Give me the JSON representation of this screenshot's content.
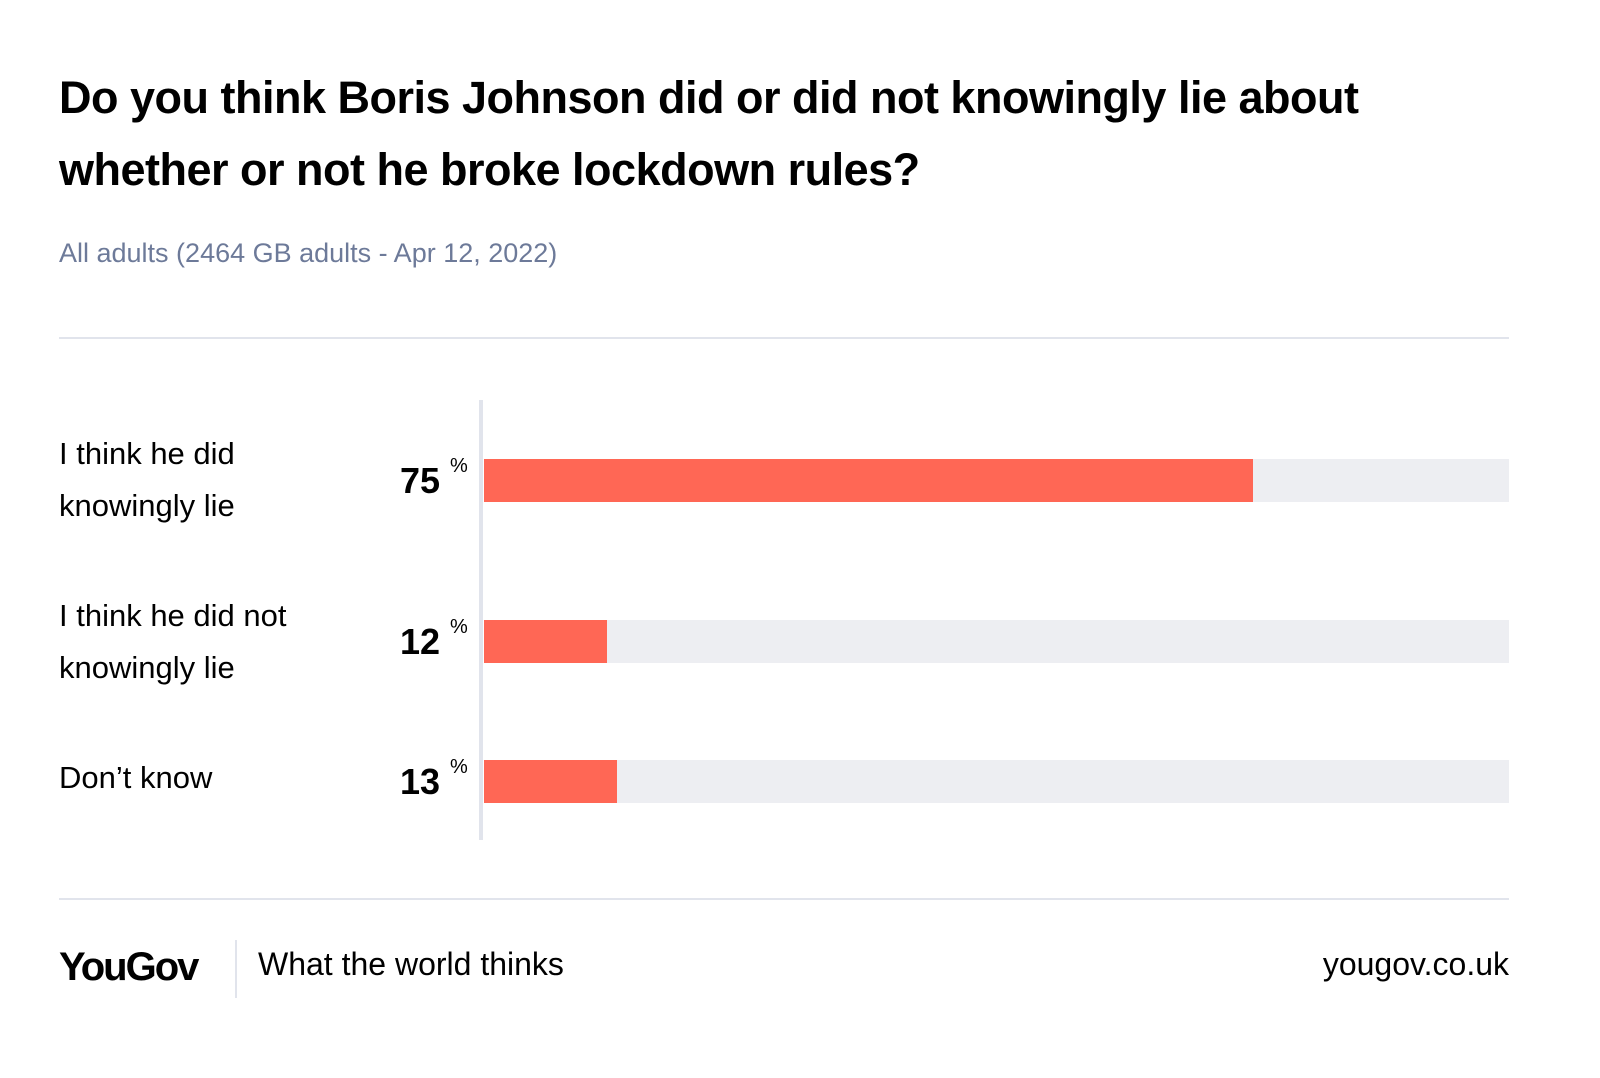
{
  "chart_data": {
    "type": "bar",
    "orientation": "horizontal",
    "title": "Do you think Boris Johnson did or did not knowingly lie about whether or not he broke lockdown rules?",
    "subtitle": "All adults (2464 GB adults - Apr 12, 2022)",
    "categories": [
      "I think he did knowingly lie",
      "I think he did not knowingly lie",
      "Don’t know"
    ],
    "category_lines": [
      [
        "I think he did",
        "knowingly lie"
      ],
      [
        "I think he did not",
        "knowingly lie"
      ],
      [
        "Don’t know"
      ]
    ],
    "values": [
      75,
      12,
      13
    ],
    "unit": "%",
    "xlim": [
      0,
      100
    ],
    "grid": false,
    "bar_color": "#ff6755",
    "track_color": "#edeef2"
  },
  "footer": {
    "logo": "YouGov",
    "tagline": "What the world thinks",
    "url": "yougov.co.uk"
  }
}
